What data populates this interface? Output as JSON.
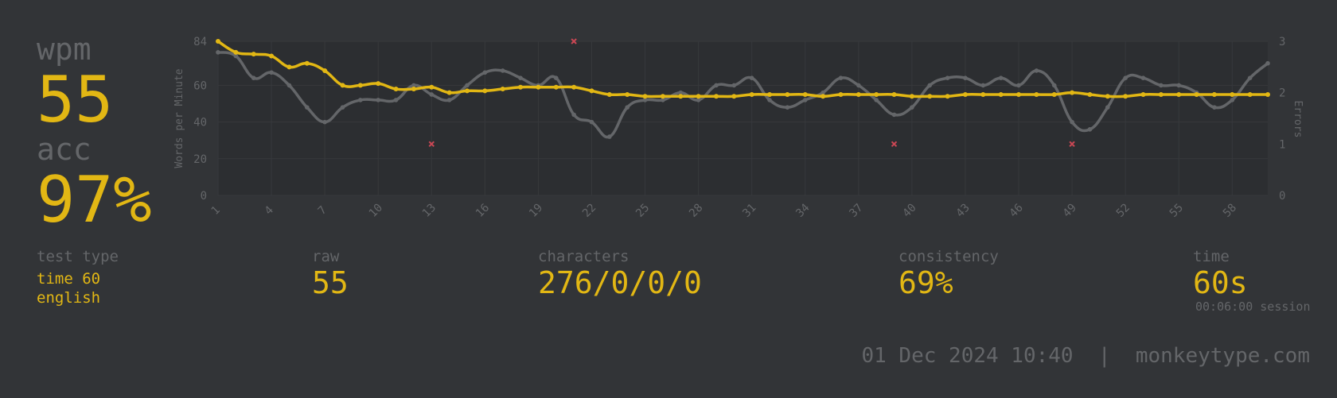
{
  "stats": {
    "wpm_label": "wpm",
    "wpm_value": "55",
    "acc_label": "acc",
    "acc_value": "97%"
  },
  "details": {
    "test_type_label": "test type",
    "test_type_mode": "time 60",
    "test_type_language": "english",
    "raw_label": "raw",
    "raw_value": "55",
    "characters_label": "characters",
    "characters_value": "276/0/0/0",
    "consistency_label": "consistency",
    "consistency_value": "69%",
    "time_label": "time",
    "time_value": "60s",
    "session_text": "00:06:00 session"
  },
  "footer": {
    "text": "01 Dec 2024 10:40  |  monkeytype.com"
  },
  "colors": {
    "background": "#323437",
    "accent": "#e2b714",
    "sub": "#646669",
    "error": "#ca4754",
    "raw_line": "#646669"
  },
  "chart_data": {
    "type": "line",
    "ylabel": "Words per Minute",
    "y2label": "Errors",
    "ylim": [
      0,
      84
    ],
    "y2lim": [
      0,
      3
    ],
    "yticks": [
      "0",
      "20",
      "40",
      "60",
      "84"
    ],
    "y2ticks": [
      "0",
      "1",
      "2",
      "3"
    ],
    "x": [
      1,
      2,
      3,
      4,
      5,
      6,
      7,
      8,
      9,
      10,
      11,
      12,
      13,
      14,
      15,
      16,
      17,
      18,
      19,
      20,
      21,
      22,
      23,
      24,
      25,
      26,
      27,
      28,
      29,
      30,
      31,
      32,
      33,
      34,
      35,
      36,
      37,
      38,
      39,
      40,
      41,
      42,
      43,
      44,
      45,
      46,
      47,
      48,
      49,
      50,
      51,
      52,
      53,
      54,
      55,
      56,
      57,
      58,
      59,
      60
    ],
    "xticks": [
      "1",
      "4",
      "7",
      "10",
      "13",
      "16",
      "19",
      "22",
      "25",
      "28",
      "31",
      "34",
      "37",
      "40",
      "43",
      "46",
      "49",
      "52",
      "55",
      "58"
    ],
    "series": [
      {
        "role": "wpm",
        "values": [
          84,
          78,
          77,
          76,
          70,
          72,
          68,
          60,
          60,
          61,
          58,
          58,
          59,
          56,
          57,
          57,
          58,
          59,
          59,
          59,
          59,
          57,
          55,
          55,
          54,
          54,
          54,
          54,
          54,
          54,
          55,
          55,
          55,
          55,
          54,
          55,
          55,
          55,
          55,
          54,
          54,
          54,
          55,
          55,
          55,
          55,
          55,
          55,
          56,
          55,
          54,
          54,
          55,
          55,
          55,
          55,
          55,
          55,
          55,
          55
        ]
      },
      {
        "role": "raw",
        "values": [
          78,
          76,
          64,
          67,
          60,
          48,
          40,
          48,
          52,
          52,
          52,
          60,
          55,
          52,
          60,
          67,
          68,
          64,
          60,
          64,
          44,
          40,
          32,
          48,
          52,
          52,
          56,
          52,
          60,
          60,
          64,
          52,
          48,
          52,
          56,
          64,
          60,
          52,
          44,
          48,
          60,
          64,
          64,
          60,
          64,
          60,
          68,
          60,
          40,
          36,
          48,
          64,
          64,
          60,
          60,
          56,
          48,
          52,
          64,
          72
        ]
      }
    ],
    "errors": [
      {
        "x": 13,
        "y": 1
      },
      {
        "x": 21,
        "y": 3
      },
      {
        "x": 39,
        "y": 1
      },
      {
        "x": 49,
        "y": 1
      }
    ],
    "grid": true
  }
}
